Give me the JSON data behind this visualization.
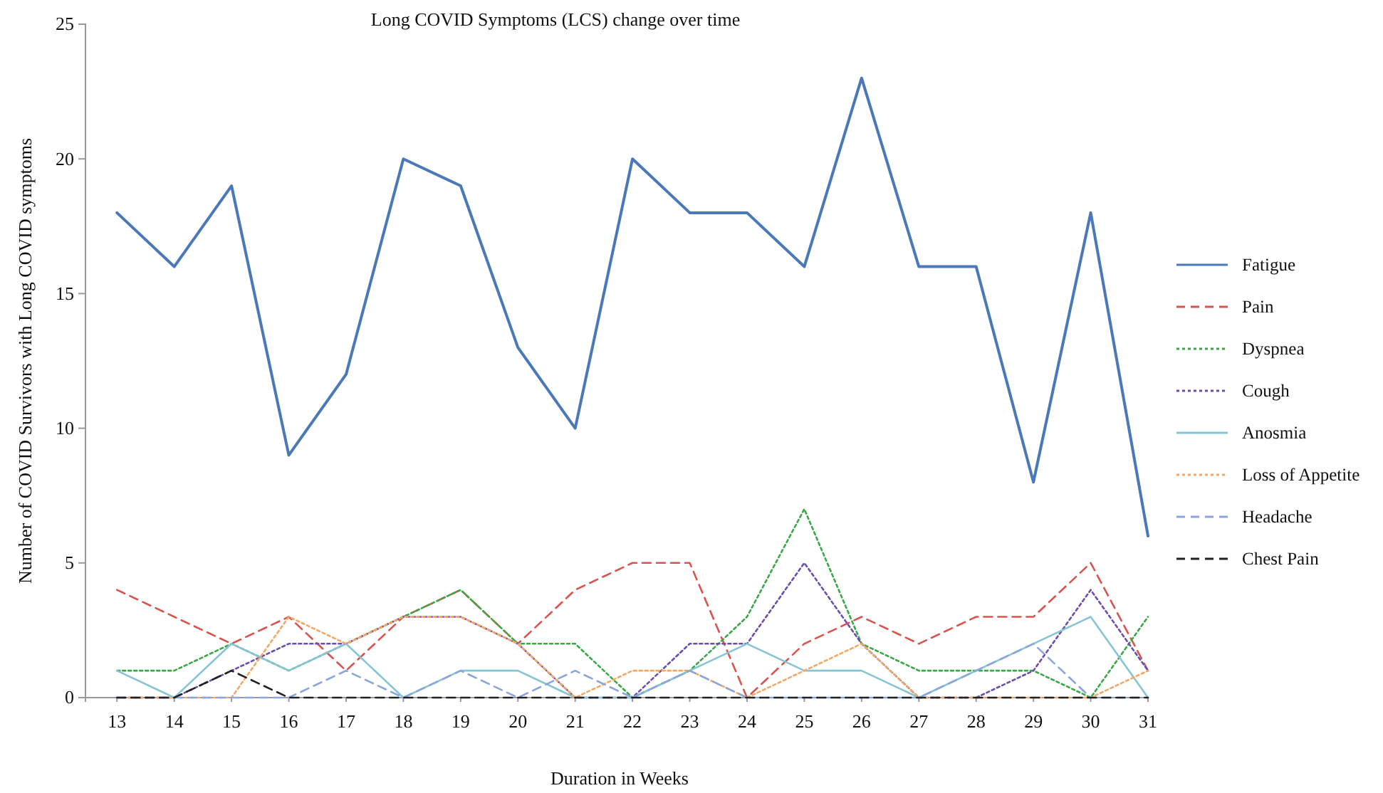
{
  "chart_data": {
    "type": "line",
    "title": "Long COVID Symptoms (LCS) change over time",
    "xlabel": "Duration in Weeks",
    "ylabel": "Number of COVID Survivors with Long COVID symptoms",
    "x": [
      13,
      14,
      15,
      16,
      17,
      18,
      19,
      20,
      21,
      22,
      23,
      24,
      25,
      26,
      27,
      28,
      29,
      30,
      31
    ],
    "xlim": [
      12.45,
      31
    ],
    "xticks": [
      13,
      14,
      15,
      16,
      17,
      18,
      19,
      20,
      21,
      22,
      23,
      24,
      25,
      26,
      27,
      28,
      29,
      30,
      31
    ],
    "ylim": [
      0,
      25
    ],
    "yticks": [
      0,
      5,
      10,
      15,
      20,
      25
    ],
    "grid": false,
    "legend": "right",
    "marker": "none",
    "series": [
      {
        "name": "Fatigue",
        "color": "#4a78b8",
        "line_style": "solid",
        "values": [
          18,
          16,
          19,
          9,
          12,
          20,
          19,
          13,
          10,
          20,
          18,
          18,
          16,
          23,
          16,
          16,
          8,
          18,
          6
        ]
      },
      {
        "name": "Pain",
        "color": "#d9534f",
        "line_style": "dashed",
        "values": [
          4,
          3,
          2,
          3,
          1,
          3,
          4,
          2,
          4,
          5,
          5,
          0,
          2,
          3,
          2,
          3,
          3,
          5,
          1
        ]
      },
      {
        "name": "Dyspnea",
        "color": "#3aa845",
        "line_style": "dotted",
        "values": [
          1,
          1,
          2,
          1,
          2,
          3,
          4,
          2,
          2,
          0,
          1,
          3,
          7,
          2,
          1,
          1,
          1,
          0,
          3
        ]
      },
      {
        "name": "Cough",
        "color": "#6a4fb0",
        "line_style": "dotted",
        "values": [
          0,
          0,
          1,
          2,
          2,
          3,
          3,
          2,
          0,
          0,
          2,
          2,
          5,
          2,
          0,
          0,
          1,
          4,
          1
        ]
      },
      {
        "name": "Anosmia",
        "color": "#86c4d6",
        "line_style": "solid",
        "values": [
          1,
          0,
          2,
          1,
          2,
          0,
          1,
          1,
          0,
          0,
          1,
          2,
          1,
          1,
          0,
          1,
          2,
          3,
          0
        ]
      },
      {
        "name": "Loss of Appetite",
        "color": "#f5a765",
        "line_style": "dotted",
        "values": [
          0,
          0,
          0,
          3,
          2,
          3,
          3,
          2,
          0,
          1,
          1,
          0,
          1,
          2,
          0,
          0,
          0,
          0,
          1
        ]
      },
      {
        "name": "Headache",
        "color": "#8aa6dd",
        "line_style": "dashed",
        "values": [
          0,
          0,
          0,
          0,
          1,
          0,
          1,
          0,
          1,
          0,
          1,
          0,
          0,
          0,
          0,
          1,
          2,
          0,
          0
        ]
      },
      {
        "name": "Chest Pain",
        "color": "#222222",
        "line_style": "dashed",
        "values": [
          0,
          0,
          1,
          0,
          0,
          0,
          0,
          0,
          0,
          0,
          0,
          0,
          0,
          0,
          0,
          0,
          0,
          0,
          0
        ]
      }
    ]
  }
}
